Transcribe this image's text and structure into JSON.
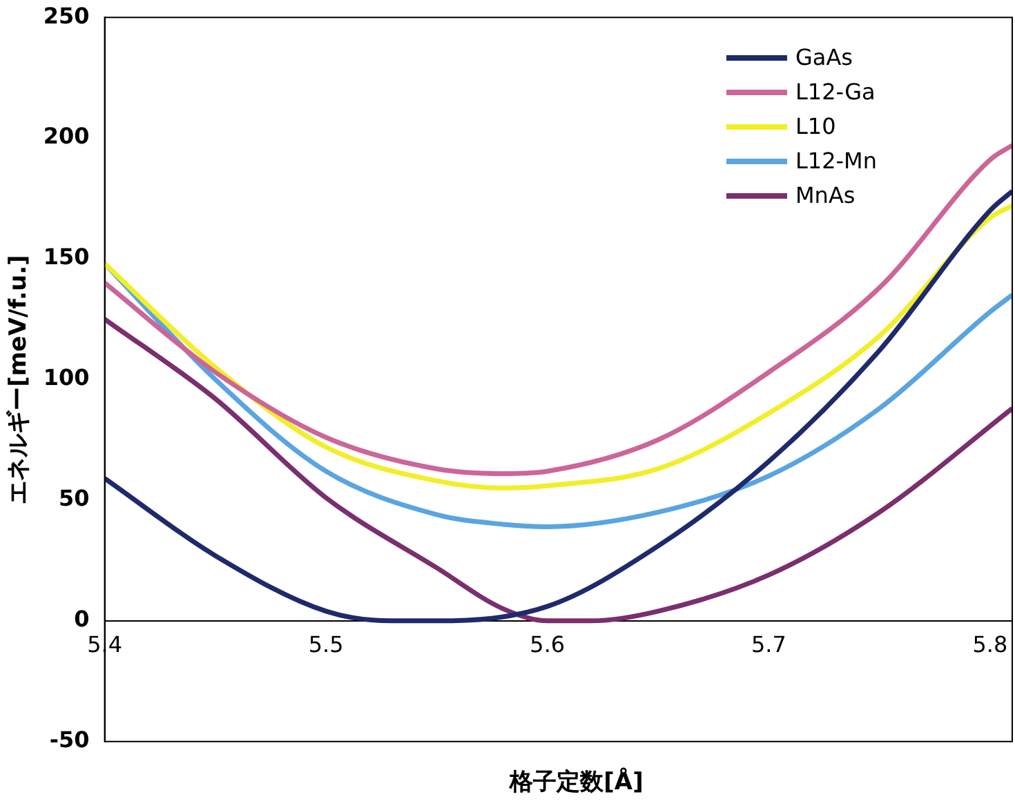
{
  "chart_data": {
    "type": "line",
    "xlabel": "格子定数[Å]",
    "ylabel": "エネルギー[meV/f.u.]",
    "x": [
      5.4,
      5.45,
      5.5,
      5.55,
      5.58,
      5.6,
      5.65,
      5.7,
      5.75,
      5.8,
      5.81
    ],
    "series": [
      {
        "name": "GaAs",
        "color": "#1f2a6b",
        "x": [
          5.4,
          5.45,
          5.5,
          5.53,
          5.55,
          5.6,
          5.65,
          5.7,
          5.75,
          5.8,
          5.81
        ],
        "values": [
          59,
          27,
          4,
          0,
          0,
          6,
          31,
          66,
          112,
          170,
          178
        ]
      },
      {
        "name": "L12-Ga",
        "color": "#cc6699",
        "values": [
          140,
          103,
          76,
          63,
          61,
          62,
          75,
          103,
          138,
          191,
          197
        ]
      },
      {
        "name": "L10",
        "color": "#f2ee2a",
        "values": [
          148,
          105,
          72,
          58,
          55,
          56,
          63,
          86,
          118,
          167,
          172
        ]
      },
      {
        "name": "L12-Mn",
        "color": "#5aa5e0",
        "values": [
          148,
          100,
          62,
          44,
          40,
          39,
          45,
          60,
          88,
          128,
          135
        ]
      },
      {
        "name": "MnAs",
        "color": "#7a2f6e",
        "x": [
          5.4,
          5.45,
          5.5,
          5.55,
          5.58,
          5.6,
          5.62,
          5.65,
          5.7,
          5.75,
          5.81
        ],
        "values": [
          125,
          92,
          51,
          22,
          5,
          0,
          0,
          4,
          19,
          45,
          88
        ]
      }
    ],
    "xlim": [
      5.4,
      5.81
    ],
    "xticks": [
      5.4,
      5.5,
      5.6,
      5.7,
      5.8
    ],
    "ylim": [
      -50,
      250
    ],
    "yticks": [
      -50,
      0,
      50,
      100,
      150,
      200,
      250
    ],
    "grid": false,
    "legend": "top right",
    "marker": "none",
    "line_style": "solid"
  }
}
